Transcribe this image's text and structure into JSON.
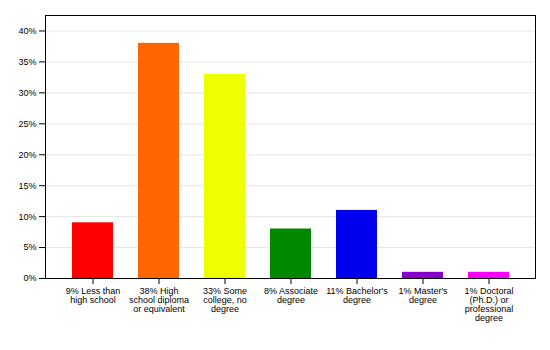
{
  "chart_data": {
    "type": "bar",
    "categories": [
      "9% Less than\nhigh school",
      "38% High\nschool diploma\nor equivalent",
      "33% Some\ncollege, no\ndegree",
      "8% Associate\ndegree",
      "11% Bachelor's\ndegree",
      "1% Master's\ndegree",
      "1% Doctoral\n(Ph.D.) or\nprofessional\ndegree"
    ],
    "values": [
      9,
      38,
      33,
      8,
      11,
      1,
      1
    ],
    "colors": [
      "#ff0000",
      "#ff6600",
      "#eeff00",
      "#008800",
      "#0000ee",
      "#8800cc",
      "#ff00ff"
    ],
    "ylim": [
      0,
      42.5
    ],
    "yticks": [
      {
        "value": 0,
        "label": "0%"
      },
      {
        "value": 5,
        "label": "5%"
      },
      {
        "value": 10,
        "label": "10%"
      },
      {
        "value": 15,
        "label": "15%"
      },
      {
        "value": 20,
        "label": "20%"
      },
      {
        "value": 25,
        "label": "25%"
      },
      {
        "value": 30,
        "label": "30%"
      },
      {
        "value": 35,
        "label": "35%"
      },
      {
        "value": 40,
        "label": "40%"
      }
    ],
    "grid": true
  }
}
